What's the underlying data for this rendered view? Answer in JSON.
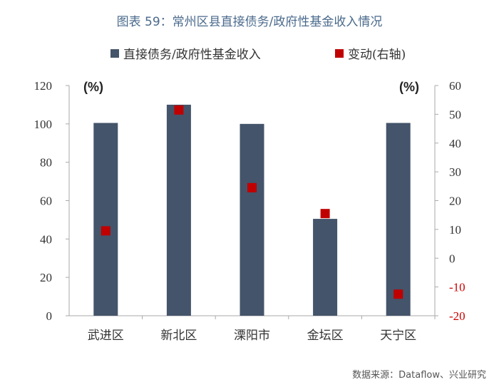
{
  "title": "图表 59：常州区县直接债务/政府性基金收入情况",
  "source": "数据来源：Dataflow、兴业研究",
  "colors": {
    "bar": "#44546a",
    "marker": "#c00000",
    "neg_tick": "#cc0000",
    "title": "#4a6a8c"
  },
  "chart_data": {
    "type": "bar",
    "title": "图表 59：常州区县直接债务/政府性基金收入情况",
    "categories": [
      "武进区",
      "新北区",
      "溧阳市",
      "金坛区",
      "天宁区"
    ],
    "series": [
      {
        "name": "直接债务/政府性基金收入",
        "type": "bar",
        "axis": "left",
        "values": [
          100.5,
          110,
          100,
          50.5,
          100.5
        ]
      },
      {
        "name": "变动(右轴)",
        "type": "scatter",
        "axis": "right",
        "values": [
          9.5,
          51.5,
          24.5,
          15.5,
          -12.5
        ]
      }
    ],
    "left_axis": {
      "unit": "(%)",
      "ylim": [
        0,
        120
      ],
      "ticks": [
        "0",
        "20",
        "40",
        "60",
        "80",
        "100",
        "120"
      ]
    },
    "right_axis": {
      "unit": "(%)",
      "ylim": [
        -20,
        60
      ],
      "ticks": [
        "-20",
        "-10",
        "0",
        "10",
        "20",
        "30",
        "40",
        "50",
        "60"
      ]
    },
    "grid": false,
    "legend_position": "top"
  }
}
